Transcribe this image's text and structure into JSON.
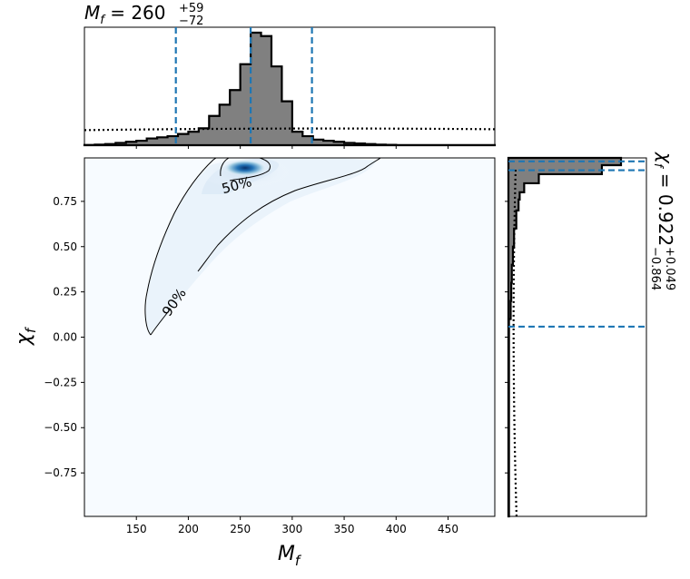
{
  "chart_data": {
    "type": "corner",
    "x_param": "M_f",
    "y_param": "chi_f",
    "top_title": {
      "symbol": "M",
      "subscript": "f",
      "median": "260",
      "plus": "+59",
      "minus": "−72"
    },
    "right_title": {
      "symbol": "χ",
      "subscript": "f",
      "median": "0.922",
      "plus": "+0.049",
      "minus": "−0.864"
    },
    "xlabel": {
      "symbol": "M",
      "subscript": "f"
    },
    "ylabel": {
      "symbol": "χ",
      "subscript": "f"
    },
    "xlim": [
      100,
      495
    ],
    "ylim": [
      -0.99,
      0.99
    ],
    "x_ticks": [
      150,
      200,
      250,
      300,
      350,
      400,
      450
    ],
    "y_ticks": [
      -0.75,
      -0.5,
      -0.25,
      0.0,
      0.25,
      0.5,
      0.75
    ],
    "x_tick_labels": [
      "150",
      "200",
      "250",
      "300",
      "350",
      "400",
      "450"
    ],
    "y_tick_labels": [
      "−0.75",
      "−0.50",
      "−0.25",
      "0.00",
      "0.25",
      "0.50",
      "0.75"
    ],
    "x_quantiles": [
      188,
      260,
      319
    ],
    "y_quantiles": [
      0.058,
      0.922,
      0.971
    ],
    "x_hist": {
      "bin_edges": [
        100,
        110,
        120,
        130,
        140,
        150,
        160,
        170,
        180,
        190,
        200,
        210,
        220,
        230,
        240,
        250,
        260,
        270,
        280,
        290,
        300,
        310,
        320,
        330,
        340,
        350,
        360,
        370,
        380,
        390,
        400,
        495
      ],
      "counts": [
        0.2,
        0.5,
        1,
        2,
        3,
        4,
        6,
        7,
        8,
        10,
        12,
        15,
        26,
        36,
        49,
        72,
        100,
        97,
        70,
        39,
        12,
        8,
        5,
        4,
        3,
        2,
        1.5,
        1,
        0.5,
        0.3,
        0.1
      ],
      "prior_level": 15
    },
    "y_hist": {
      "bin_edges": [
        -0.99,
        0.1,
        0.2,
        0.3,
        0.4,
        0.5,
        0.6,
        0.7,
        0.76,
        0.8,
        0.85,
        0.9,
        0.95,
        0.99
      ],
      "counts": [
        0.5,
        2,
        2.5,
        3,
        4,
        5,
        7,
        9,
        10,
        14,
        27,
        83,
        100
      ],
      "prior_level": 4
    },
    "contours": [
      {
        "label": "50%",
        "label_at": [
          245,
          0.845
        ]
      },
      {
        "label": "90%",
        "label_at": [
          180,
          0.18
        ]
      }
    ],
    "peak": [
      265,
      0.935
    ],
    "colors": {
      "hist_fill": "#808080",
      "quantile": "#1f77b4",
      "density_peak": "#08306b",
      "density_mid": "#6baed6",
      "density_low": "#f7fbff"
    }
  }
}
